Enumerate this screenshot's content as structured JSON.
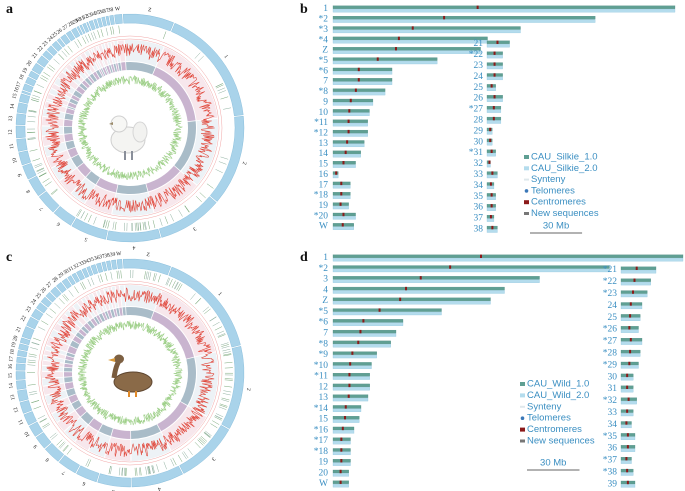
{
  "panel_a": {
    "label": "a",
    "circos": [
      "Z",
      "1",
      "2",
      "3",
      "4",
      "5",
      "6",
      "7",
      "8",
      "9",
      "10",
      "11",
      "12",
      "13",
      "14",
      "15",
      "16",
      "17",
      "18",
      "19",
      "20",
      "21",
      "22",
      "23",
      "24",
      "25",
      "26",
      "27",
      "28",
      "29",
      "30",
      "31",
      "32",
      "33",
      "34",
      "35",
      "36",
      "37",
      "38",
      "W"
    ]
  },
  "panel_b": {
    "label": "b",
    "left": [
      {
        "name": "1",
        "length": 197
      },
      {
        "name": "*2",
        "length": 151
      },
      {
        "name": "*3",
        "length": 108
      },
      {
        "name": "*4",
        "length": 89
      },
      {
        "name": "Z",
        "length": 85
      },
      {
        "name": "*5",
        "length": 60
      },
      {
        "name": "*6",
        "length": 34
      },
      {
        "name": "7",
        "length": 34
      },
      {
        "name": "*8",
        "length": 30
      },
      {
        "name": "9",
        "length": 23
      },
      {
        "name": "10",
        "length": 21
      },
      {
        "name": "*11",
        "length": 20
      },
      {
        "name": "*12",
        "length": 20
      },
      {
        "name": "13",
        "length": 18
      },
      {
        "name": "14",
        "length": 16
      },
      {
        "name": "15",
        "length": 13
      },
      {
        "name": "16",
        "length": 3
      },
      {
        "name": "17",
        "length": 10
      },
      {
        "name": "*18",
        "length": 10
      },
      {
        "name": "19",
        "length": 9
      },
      {
        "name": "*20",
        "length": 13
      },
      {
        "name": "W",
        "length": 12
      }
    ],
    "right": [
      {
        "name": "21",
        "length": 13
      },
      {
        "name": "*22",
        "length": 9
      },
      {
        "name": "23",
        "length": 9
      },
      {
        "name": "24",
        "length": 9
      },
      {
        "name": "25",
        "length": 5
      },
      {
        "name": "26",
        "length": 9
      },
      {
        "name": "*27",
        "length": 8
      },
      {
        "name": "28",
        "length": 8
      },
      {
        "name": "29",
        "length": 3
      },
      {
        "name": "30",
        "length": 3
      },
      {
        "name": "*31",
        "length": 5
      },
      {
        "name": "32",
        "length": 2
      },
      {
        "name": "33",
        "length": 6
      },
      {
        "name": "34",
        "length": 4
      },
      {
        "name": "35",
        "length": 5
      },
      {
        "name": "36",
        "length": 5
      },
      {
        "name": "37",
        "length": 4
      },
      {
        "name": "38",
        "length": 6
      }
    ],
    "legend": [
      "CAU_Silkie_1.0",
      "CAU_Silkie_2.0",
      "Synteny",
      "Telomeres",
      "Centromeres",
      "New sequences"
    ],
    "scale_bar": {
      "value": 30,
      "label": "30 Mb"
    }
  },
  "panel_c": {
    "label": "c",
    "circos": [
      "Z",
      "1",
      "2",
      "3",
      "4",
      "5",
      "6",
      "7",
      "8",
      "9",
      "10",
      "11",
      "12",
      "13",
      "14",
      "15",
      "16",
      "17",
      "18",
      "19",
      "20",
      "21",
      "22",
      "23",
      "24",
      "25",
      "26",
      "27",
      "28",
      "29",
      "30",
      "31",
      "32",
      "33",
      "34",
      "35",
      "36",
      "37",
      "38",
      "39",
      "W"
    ]
  },
  "panel_d": {
    "label": "d",
    "left": [
      {
        "name": "1",
        "length": 200
      },
      {
        "name": "*2",
        "length": 158
      },
      {
        "name": "3",
        "length": 118
      },
      {
        "name": "4",
        "length": 98
      },
      {
        "name": "Z",
        "length": 90
      },
      {
        "name": "*5",
        "length": 62
      },
      {
        "name": "*6",
        "length": 40
      },
      {
        "name": "7",
        "length": 36
      },
      {
        "name": "*8",
        "length": 33
      },
      {
        "name": "*9",
        "length": 25
      },
      {
        "name": "*10",
        "length": 22
      },
      {
        "name": "*11",
        "length": 21
      },
      {
        "name": "12",
        "length": 21
      },
      {
        "name": "13",
        "length": 20
      },
      {
        "name": "*14",
        "length": 16
      },
      {
        "name": "15",
        "length": 15
      },
      {
        "name": "*16",
        "length": 12
      },
      {
        "name": "*17",
        "length": 10
      },
      {
        "name": "*18",
        "length": 10
      },
      {
        "name": "19",
        "length": 10
      },
      {
        "name": "20",
        "length": 9
      },
      {
        "name": "W",
        "length": 9
      }
    ],
    "right": [
      {
        "name": "*21",
        "length": 20
      },
      {
        "name": "*22",
        "length": 17
      },
      {
        "name": "*23",
        "length": 15
      },
      {
        "name": "24",
        "length": 12
      },
      {
        "name": "25",
        "length": 11
      },
      {
        "name": "*26",
        "length": 10
      },
      {
        "name": "*27",
        "length": 12
      },
      {
        "name": "*28",
        "length": 11
      },
      {
        "name": "*29",
        "length": 10
      },
      {
        "name": "30",
        "length": 7
      },
      {
        "name": "31",
        "length": 7
      },
      {
        "name": "*32",
        "length": 9
      },
      {
        "name": "33",
        "length": 7
      },
      {
        "name": "34",
        "length": 6
      },
      {
        "name": "*35",
        "length": 8
      },
      {
        "name": "36",
        "length": 8
      },
      {
        "name": "*37",
        "length": 6
      },
      {
        "name": "*38",
        "length": 7
      },
      {
        "name": "39",
        "length": 8
      }
    ],
    "legend": [
      "CAU_Wild_1.0",
      "CAU_Wild_2.0",
      "Synteny",
      "Telomeres",
      "Centromeres",
      "New sequences"
    ],
    "scale_bar": {
      "value": 30,
      "label": "30 Mb"
    }
  }
}
